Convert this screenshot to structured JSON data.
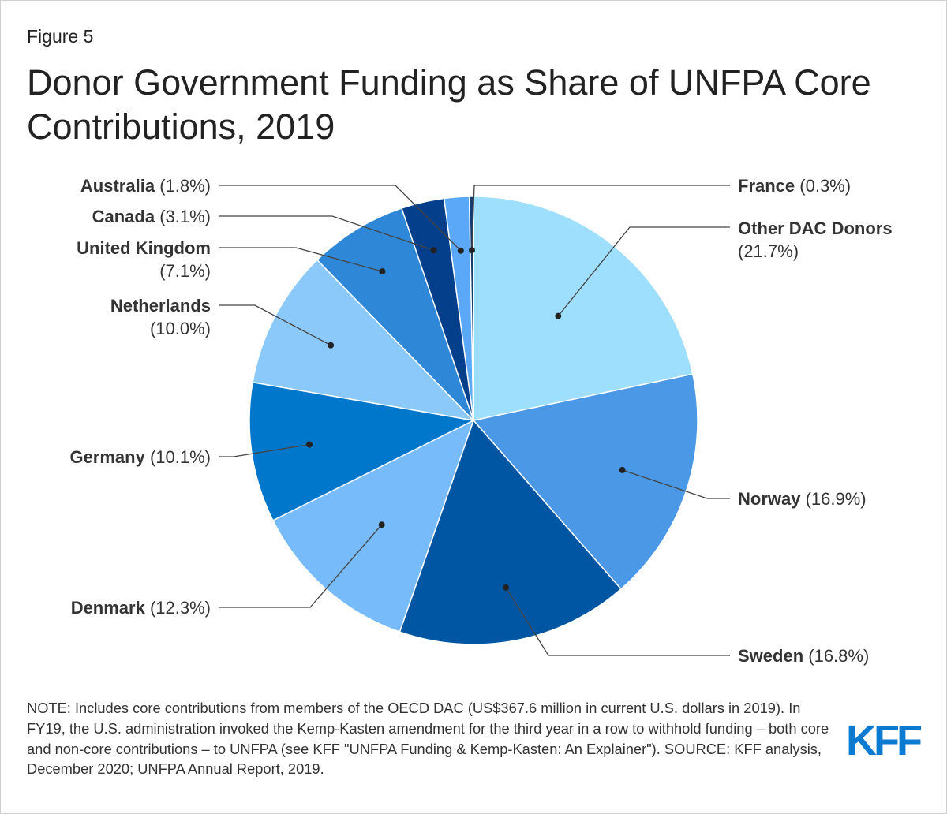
{
  "figure_label": "Figure 5",
  "title": "Donor Government Funding as Share of UNFPA Core Contributions, 2019",
  "note": "NOTE: Includes core contributions from members of the OECD DAC (US$367.6 million in current U.S. dollars in 2019). In FY19, the U.S. administration invoked the Kemp-Kasten amendment for the third year in a row to withhold funding – both core and non-core contributions – to UNFPA (see KFF \"UNFPA Funding & Kemp-Kasten: An Explainer\"). SOURCE: KFF analysis, December 2020; UNFPA Annual Report, 2019.",
  "logo": "KFF",
  "chart_data": {
    "type": "pie",
    "title": "Donor Government Funding as Share of UNFPA Core Contributions, 2019",
    "unit": "%",
    "slices": [
      {
        "name": "Other DAC Donors",
        "value": 21.7,
        "display": "(21.7%)",
        "color": "#9ddffc"
      },
      {
        "name": "Norway",
        "value": 16.9,
        "display": "(16.9%)",
        "color": "#4a98e6"
      },
      {
        "name": "Sweden",
        "value": 16.8,
        "display": "(16.8%)",
        "color": "#0156a3"
      },
      {
        "name": "Denmark",
        "value": 12.3,
        "display": "(12.3%)",
        "color": "#77bbfb"
      },
      {
        "name": "Germany",
        "value": 10.1,
        "display": "(10.1%)",
        "color": "#0077cb"
      },
      {
        "name": "Netherlands",
        "value": 10.0,
        "display": "(10.0%)",
        "color": "#8bc9fb"
      },
      {
        "name": "United Kingdom",
        "value": 7.1,
        "display": "(7.1%)",
        "color": "#2e87d7"
      },
      {
        "name": "Canada",
        "value": 3.1,
        "display": "(3.1%)",
        "color": "#033f8a"
      },
      {
        "name": "Australia",
        "value": 1.8,
        "display": "(1.8%)",
        "color": "#5aa8f7"
      },
      {
        "name": "France",
        "value": 0.3,
        "display": "(0.3%)",
        "color": "#163c6e"
      }
    ]
  }
}
